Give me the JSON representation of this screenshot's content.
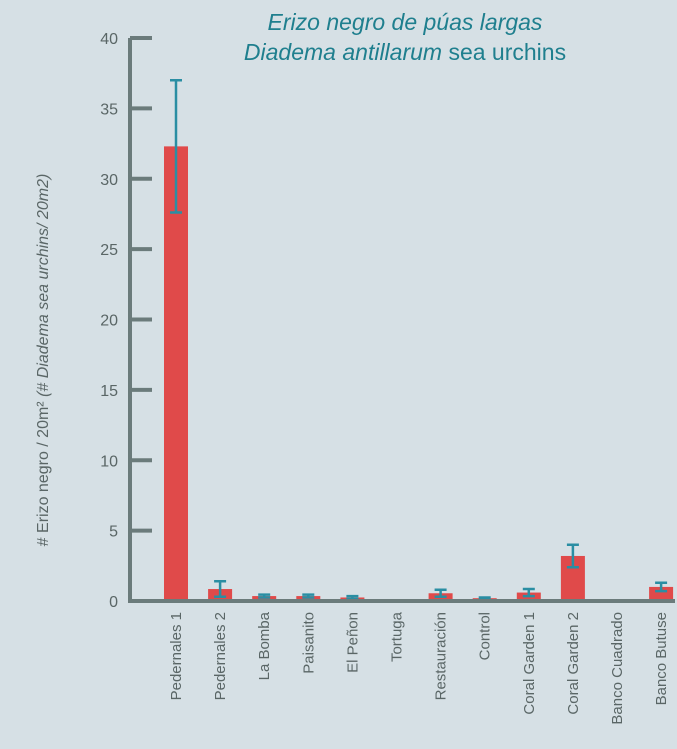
{
  "chart_data": {
    "type": "bar",
    "title": [
      "Erizo negro de púas largas",
      "Diadema antillarum",
      "sea urchins"
    ],
    "ylabel": [
      "# Erizo negro / 20m²",
      "(# Diadema sea urchins/ 20m2)"
    ],
    "categories": [
      "Pedernales 1",
      "Pedernales 2",
      "La Bomba",
      "Paisanito",
      "El Peñon",
      "Tortuga",
      "Restauración",
      "Control",
      "Coral Garden 1",
      "Coral Garden 2",
      "Banco Cuadrado",
      "Banco Butuse"
    ],
    "values": [
      32.3,
      0.85,
      0.35,
      0.35,
      0.25,
      0,
      0.55,
      0.2,
      0.6,
      3.2,
      0,
      1.0
    ],
    "errors": [
      4.7,
      0.55,
      0.1,
      0.1,
      0.1,
      0,
      0.25,
      0.05,
      0.25,
      0.8,
      0,
      0.3
    ],
    "color": "#e04a4a",
    "error_color": "#2a8ea3",
    "axis_color": "#6b7b7b",
    "ylim": [
      0,
      40
    ],
    "yticks": [
      0,
      5,
      10,
      15,
      20,
      25,
      30,
      35,
      40
    ]
  }
}
